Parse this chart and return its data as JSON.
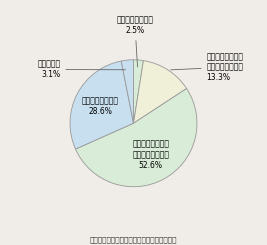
{
  "values": [
    2.5,
    13.3,
    52.6,
    28.6,
    3.1
  ],
  "colors": [
    "#d8ecd8",
    "#f0f0d8",
    "#d8ecd8",
    "#c8dff0",
    "#c8dff0"
  ],
  "edge_color": "#999999",
  "source_text": "出典：内閣府「治安に関する特別世論調査」",
  "startangle": 90,
  "bg_color": "#f0ede8",
  "label_texts": [
    "よくなったと思う\n2.5%",
    "どちらかといえば\nよくなったと思う\n13.3%",
    "どちらかといえば\n悪くなったと思う\n52.6%",
    "悪くなったと思う\n28.6%",
    "わからない\n3.1%"
  ]
}
